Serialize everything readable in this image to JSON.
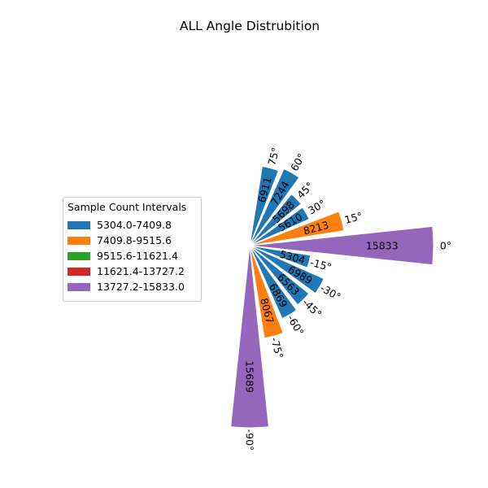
{
  "chart_data": {
    "type": "polar-bar",
    "title": "ALL Angle Distrubition",
    "legend": {
      "title": "Sample Count Intervals",
      "placement": "left",
      "entries": [
        {
          "label": "5304.0-7409.8",
          "color": "#1f77b4"
        },
        {
          "label": "7409.8-9515.6",
          "color": "#ff7f0e"
        },
        {
          "label": "9515.6-11621.4",
          "color": "#2ca02c"
        },
        {
          "label": "11621.4-13727.2",
          "color": "#d62728"
        },
        {
          "label": "13727.2-15833.0",
          "color": "#9467bd"
        }
      ]
    },
    "categories": [
      "75°",
      "60°",
      "45°",
      "30°",
      "15°",
      "0°",
      "-15°",
      "-30°",
      "-45°",
      "-60°",
      "-75°",
      "-90°"
    ],
    "angles": [
      75,
      60,
      45,
      30,
      15,
      0,
      -15,
      -30,
      -45,
      -60,
      -75,
      -90
    ],
    "values": [
      6911,
      7244,
      5698,
      5610,
      8213,
      15833,
      5304,
      6989,
      6563,
      6869,
      8067,
      15689
    ],
    "value_labels": [
      "6911",
      "7244",
      "5698",
      "5610",
      "8213",
      "15833",
      "5304",
      "6989",
      "6563",
      "6869",
      "8067",
      "15689"
    ],
    "grid": false
  }
}
